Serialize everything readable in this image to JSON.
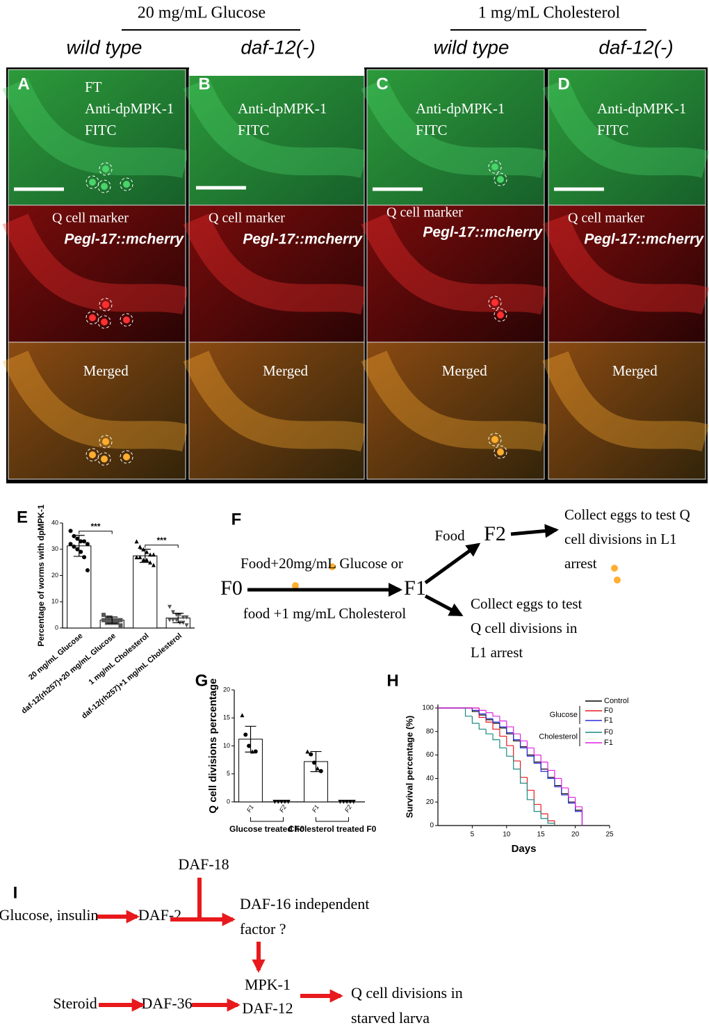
{
  "header": {
    "groups": [
      {
        "title": "20 mg/mL Glucose",
        "columns": [
          "wild type",
          "daf-12(-)"
        ]
      },
      {
        "title": "1 mg/mL Cholesterol",
        "columns": [
          "wild type",
          "daf-12(-)"
        ]
      }
    ]
  },
  "micrographs": [
    {
      "letter": "A",
      "fitc": [
        "FT",
        "Anti-dpMPK-1",
        "FITC"
      ],
      "marker": [
        "Q cell marker",
        "Pegl-17::mcherry"
      ],
      "merged": "Merged"
    },
    {
      "letter": "B",
      "fitc": [
        "Anti-dpMPK-1",
        "FITC"
      ],
      "marker": [
        "Q cell marker",
        "Pegl-17::mcherry"
      ],
      "merged": "Merged"
    },
    {
      "letter": "C",
      "fitc": [
        "Anti-dpMPK-1",
        "FITC"
      ],
      "marker": [
        "Q cell marker",
        "Pegl-17::mcherry"
      ],
      "merged": "Merged"
    },
    {
      "letter": "D",
      "fitc": [
        "Anti-dpMPK-1",
        "FITC"
      ],
      "marker": [
        "Q cell marker",
        "Pegl-17::mcherry"
      ],
      "merged": "Merged"
    }
  ],
  "chart_data": [
    {
      "type": "bar",
      "panel": "E",
      "y_label": "Percentage of worms with dpMPK-1",
      "categories": [
        "20 mg/mL Glucose",
        "daf-12(rh257)+20 mg/mL Glucose",
        "1 mg/mL Cholesterol",
        "daf-12(rh257)+1 mg/mL Cholesterol"
      ],
      "values": [
        31.3,
        3,
        27.5,
        3.8
      ],
      "errors": [
        4,
        1.2,
        2.5,
        1.8
      ],
      "points": [
        [
          37,
          35,
          34,
          33,
          33,
          32,
          32,
          31,
          30,
          29,
          27,
          22
        ],
        [
          5,
          4,
          4,
          3,
          3,
          3,
          3,
          2,
          2,
          2,
          2,
          1
        ],
        [
          33,
          31,
          30,
          29,
          28,
          28,
          27,
          27,
          26,
          26,
          25,
          24
        ],
        [
          8,
          6,
          5,
          5,
          4,
          4,
          3,
          3,
          3,
          2,
          2,
          1
        ]
      ],
      "annotations": [
        "***",
        "***"
      ],
      "ylim": [
        0,
        40
      ],
      "yticks": [
        0,
        10,
        20,
        30,
        40
      ]
    },
    {
      "type": "bar",
      "panel": "G",
      "y_label": "Q cell divisions percentage",
      "categories": [
        "F1",
        "F2",
        "F1",
        "F2"
      ],
      "groups": [
        "Glucose treated F0",
        "Cholesterol treated F0"
      ],
      "values": [
        11.2,
        0,
        7.2,
        0
      ],
      "errors": [
        2.3,
        0,
        1.8,
        0
      ],
      "points": [
        [
          15.5,
          12,
          10,
          9,
          9
        ],
        [
          0,
          0,
          0,
          0,
          0
        ],
        [
          9,
          8.5,
          7,
          6,
          5.5
        ],
        [
          0,
          0,
          0,
          0,
          0
        ]
      ],
      "ylim": [
        0,
        20
      ],
      "yticks": [
        0,
        5,
        10,
        15,
        20
      ]
    },
    {
      "type": "line",
      "panel": "H",
      "x_label": "Days",
      "y_label": "Survival percentage (%)",
      "legend_groups": [
        "Glucose",
        "Cholesterol"
      ],
      "series": [
        {
          "name": "Control",
          "color": "#000000",
          "x": [
            0,
            5,
            6,
            7,
            8,
            9,
            10,
            11,
            12,
            13,
            14,
            15,
            16,
            17,
            18,
            19,
            20,
            21
          ],
          "values": [
            100,
            97,
            94,
            90,
            87,
            83,
            78,
            72,
            67,
            60,
            54,
            48,
            41,
            34,
            27,
            20,
            13,
            0
          ]
        },
        {
          "name": "F0",
          "color": "#e8191c",
          "x": [
            0,
            6,
            7,
            8,
            9,
            10,
            11,
            12,
            13,
            14,
            15,
            16,
            17
          ],
          "values": [
            100,
            92,
            88,
            82,
            76,
            68,
            55,
            41,
            30,
            18,
            10,
            4,
            0
          ]
        },
        {
          "name": "F1",
          "color": "#2b2bd9",
          "x": [
            0,
            5,
            6,
            7,
            8,
            9,
            10,
            11,
            12,
            13,
            14,
            15,
            16,
            17,
            18,
            19,
            20,
            21
          ],
          "values": [
            100,
            98,
            95,
            91,
            88,
            84,
            79,
            73,
            66,
            59,
            53,
            46,
            40,
            33,
            26,
            19,
            12,
            0
          ]
        },
        {
          "name": "F0",
          "color": "#1a8a80",
          "x": [
            0,
            4,
            5,
            6,
            7,
            8,
            9,
            10,
            11,
            12,
            13,
            14,
            15,
            16,
            17
          ],
          "values": [
            100,
            93,
            87,
            82,
            78,
            73,
            66,
            59,
            48,
            36,
            22,
            12,
            6,
            2,
            0
          ]
        },
        {
          "name": "F1",
          "color": "#e020e0",
          "x": [
            0,
            6,
            7,
            8,
            9,
            10,
            11,
            12,
            13,
            14,
            15,
            16,
            17,
            18,
            19,
            20,
            21
          ],
          "values": [
            100,
            98,
            96,
            93,
            89,
            84,
            78,
            72,
            66,
            60,
            54,
            47,
            40,
            32,
            24,
            16,
            0
          ]
        }
      ],
      "xlim": [
        0,
        25
      ],
      "xticks": [
        5,
        10,
        15,
        20,
        25
      ],
      "ylim": [
        0,
        100
      ],
      "yticks": [
        0,
        20,
        40,
        60,
        80,
        100
      ]
    }
  ],
  "flow": {
    "panel": "F",
    "nodes": [
      "F0",
      "F1",
      "F2"
    ],
    "treatment": [
      "Food+20mg/mL Glucose or",
      "food +1 mg/mL Cholesterol"
    ],
    "food": "Food",
    "outcome_f2": [
      "Collect eggs to test Q",
      "cell divisions in L1",
      "arrest"
    ],
    "outcome_f1": [
      "Collect eggs to test",
      "Q cell divisions in",
      "L1 arrest"
    ]
  },
  "pathway": {
    "panel": "I",
    "daf18": "DAF-18",
    "glucose": "Glucose, insulin",
    "daf2": "DAF-2",
    "factor": [
      "DAF-16 independent",
      "factor ?"
    ],
    "steroid": "Steroid",
    "daf36": "DAF-36",
    "core": [
      "MPK-1",
      "DAF-12"
    ],
    "outcome": [
      "Q cell divisions in",
      "starved larva"
    ]
  }
}
